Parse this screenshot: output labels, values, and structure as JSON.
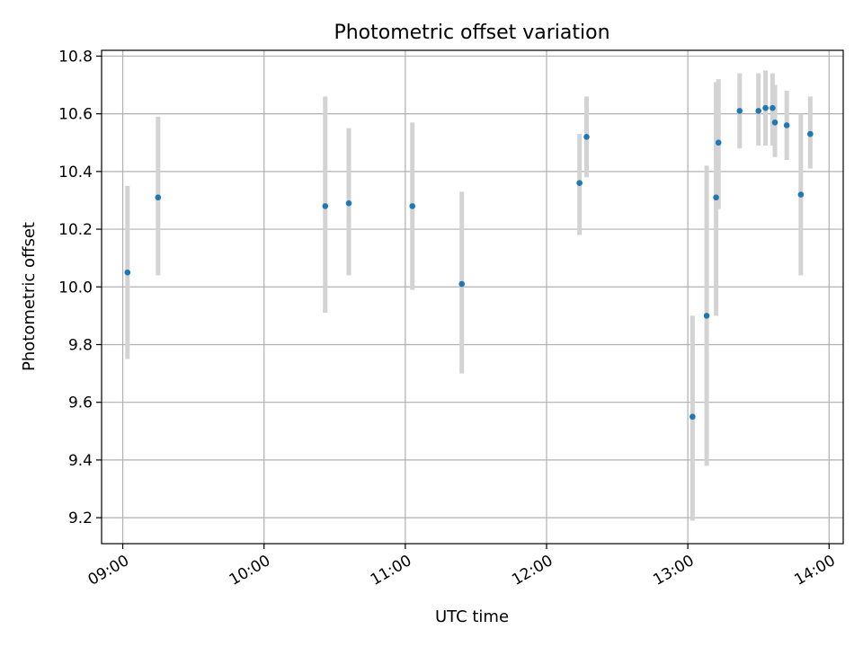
{
  "chart_data": {
    "type": "scatter",
    "title": "Photometric offset variation",
    "xlabel": "UTC time",
    "ylabel": "Photometric offset",
    "x_ticks": [
      "09:00",
      "10:00",
      "11:00",
      "12:00",
      "13:00",
      "14:00"
    ],
    "y_ticks": [
      "9.2",
      "9.4",
      "9.6",
      "9.8",
      "10.0",
      "10.2",
      "10.4",
      "10.6",
      "10.8"
    ],
    "xlim": [
      "08:51",
      "14:06"
    ],
    "ylim": [
      9.11,
      10.82
    ],
    "grid": true,
    "colors": {
      "point": "#1f77b4",
      "errorbar": "#d3d3d3",
      "grid": "#b0b0b0"
    },
    "points": [
      {
        "x": "09:02",
        "y": 10.05,
        "y_low": 9.75,
        "y_high": 10.35
      },
      {
        "x": "09:15",
        "y": 10.31,
        "y_low": 10.04,
        "y_high": 10.59
      },
      {
        "x": "10:26",
        "y": 10.28,
        "y_low": 9.91,
        "y_high": 10.66
      },
      {
        "x": "10:36",
        "y": 10.29,
        "y_low": 10.04,
        "y_high": 10.55
      },
      {
        "x": "11:03",
        "y": 10.28,
        "y_low": 9.99,
        "y_high": 10.57
      },
      {
        "x": "11:24",
        "y": 10.01,
        "y_low": 9.7,
        "y_high": 10.33
      },
      {
        "x": "12:14",
        "y": 10.36,
        "y_low": 10.18,
        "y_high": 10.53
      },
      {
        "x": "12:17",
        "y": 10.52,
        "y_low": 10.38,
        "y_high": 10.66
      },
      {
        "x": "13:02",
        "y": 9.55,
        "y_low": 9.19,
        "y_high": 9.9
      },
      {
        "x": "13:08",
        "y": 9.9,
        "y_low": 9.38,
        "y_high": 10.42
      },
      {
        "x": "13:12",
        "y": 10.31,
        "y_low": 9.9,
        "y_high": 10.71
      },
      {
        "x": "13:13",
        "y": 10.5,
        "y_low": 10.27,
        "y_high": 10.72
      },
      {
        "x": "13:22",
        "y": 10.61,
        "y_low": 10.48,
        "y_high": 10.74
      },
      {
        "x": "13:30",
        "y": 10.61,
        "y_low": 10.49,
        "y_high": 10.74
      },
      {
        "x": "13:33",
        "y": 10.62,
        "y_low": 10.49,
        "y_high": 10.75
      },
      {
        "x": "13:36",
        "y": 10.62,
        "y_low": 10.49,
        "y_high": 10.74
      },
      {
        "x": "13:37",
        "y": 10.57,
        "y_low": 10.45,
        "y_high": 10.7
      },
      {
        "x": "13:42",
        "y": 10.56,
        "y_low": 10.44,
        "y_high": 10.68
      },
      {
        "x": "13:48",
        "y": 10.32,
        "y_low": 10.04,
        "y_high": 10.6
      },
      {
        "x": "13:52",
        "y": 10.53,
        "y_low": 10.41,
        "y_high": 10.66
      }
    ]
  }
}
